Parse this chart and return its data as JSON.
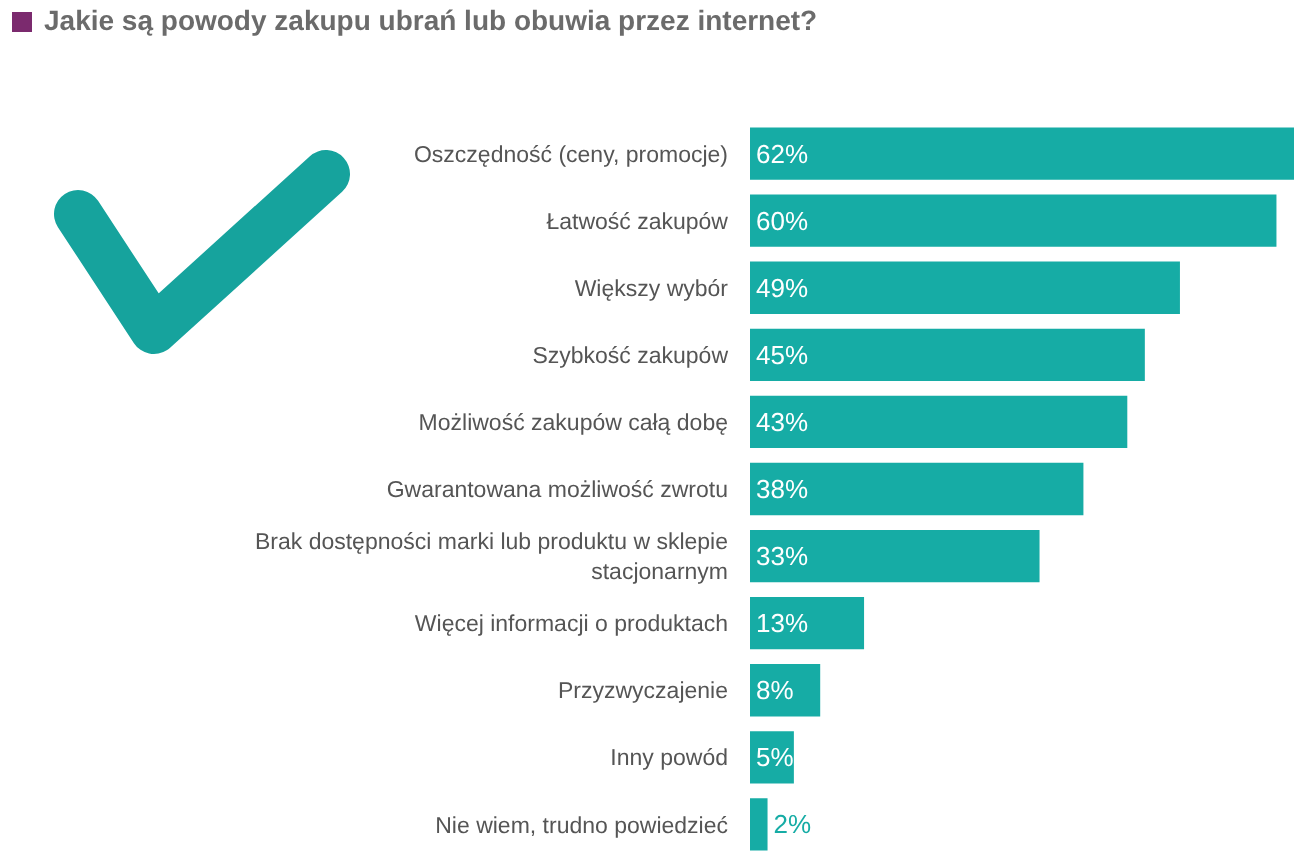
{
  "chart_data": {
    "type": "bar",
    "orientation": "horizontal",
    "title": "Jakie są powody zakupu ubrań lub obuwia przez internet?",
    "categories": [
      "Oszczędność (ceny, promocje)",
      "Łatwość zakupów",
      "Większy wybór",
      "Szybkość zakupów",
      "Możliwość zakupów całą dobę",
      "Gwarantowana możliwość zwrotu",
      "Brak dostępności marki lub produktu w sklepie\nstacjonarnym",
      "Więcej informacji o produktach",
      "Przyzwyczajenie",
      "Inny powód",
      "Nie wiem, trudno powiedzieć"
    ],
    "values": [
      62,
      60,
      49,
      45,
      43,
      38,
      33,
      13,
      8,
      5,
      2
    ],
    "value_labels": [
      "62%",
      "60%",
      "49%",
      "45%",
      "43%",
      "38%",
      "33%",
      "13%",
      "8%",
      "5%",
      "2%"
    ],
    "color": "#16aca5",
    "xlim": [
      0,
      62
    ],
    "tick_labels": "y",
    "legend": false
  }
}
